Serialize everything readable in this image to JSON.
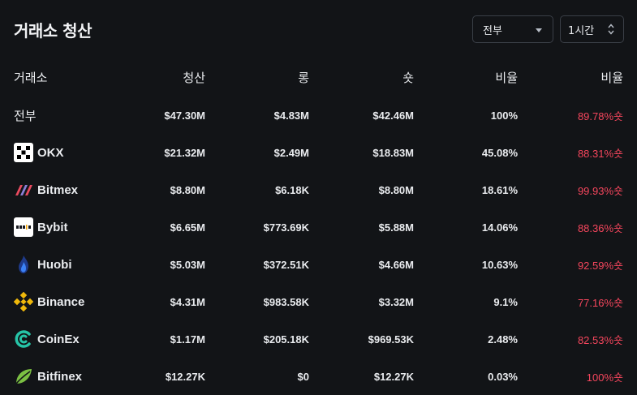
{
  "header": {
    "title": "거래소 청산",
    "exchange_select": "전부",
    "time_select": "1시간"
  },
  "columns": [
    "거래소",
    "청산",
    "롱",
    "숏",
    "비율",
    "비율"
  ],
  "rows": [
    {
      "exchange": "전부",
      "logo": "",
      "total": "$47.30M",
      "long": "$4.83M",
      "short": "$42.46M",
      "share": "100%",
      "ratio": "89.78%숏"
    },
    {
      "exchange": "OKX",
      "logo": "okx-icon",
      "total": "$21.32M",
      "long": "$2.49M",
      "short": "$18.83M",
      "share": "45.08%",
      "ratio": "88.31%숏"
    },
    {
      "exchange": "Bitmex",
      "logo": "bitmex-icon",
      "total": "$8.80M",
      "long": "$6.18K",
      "short": "$8.80M",
      "share": "18.61%",
      "ratio": "99.93%숏"
    },
    {
      "exchange": "Bybit",
      "logo": "bybit-icon",
      "total": "$6.65M",
      "long": "$773.69K",
      "short": "$5.88M",
      "share": "14.06%",
      "ratio": "88.36%숏"
    },
    {
      "exchange": "Huobi",
      "logo": "huobi-icon",
      "total": "$5.03M",
      "long": "$372.51K",
      "short": "$4.66M",
      "share": "10.63%",
      "ratio": "92.59%숏"
    },
    {
      "exchange": "Binance",
      "logo": "binance-icon",
      "total": "$4.31M",
      "long": "$983.58K",
      "short": "$3.32M",
      "share": "9.1%",
      "ratio": "77.16%숏"
    },
    {
      "exchange": "CoinEx",
      "logo": "coinex-icon",
      "total": "$1.17M",
      "long": "$205.18K",
      "short": "$969.53K",
      "share": "2.48%",
      "ratio": "82.53%숏"
    },
    {
      "exchange": "Bitfinex",
      "logo": "bitfinex-icon",
      "total": "$12.27K",
      "long": "$0",
      "short": "$12.27K",
      "share": "0.03%",
      "ratio": "100%숏"
    }
  ],
  "colors": {
    "background": "#121417",
    "text": "#eaecef",
    "short_ratio": "#f6465d",
    "border": "#3a3f47"
  }
}
